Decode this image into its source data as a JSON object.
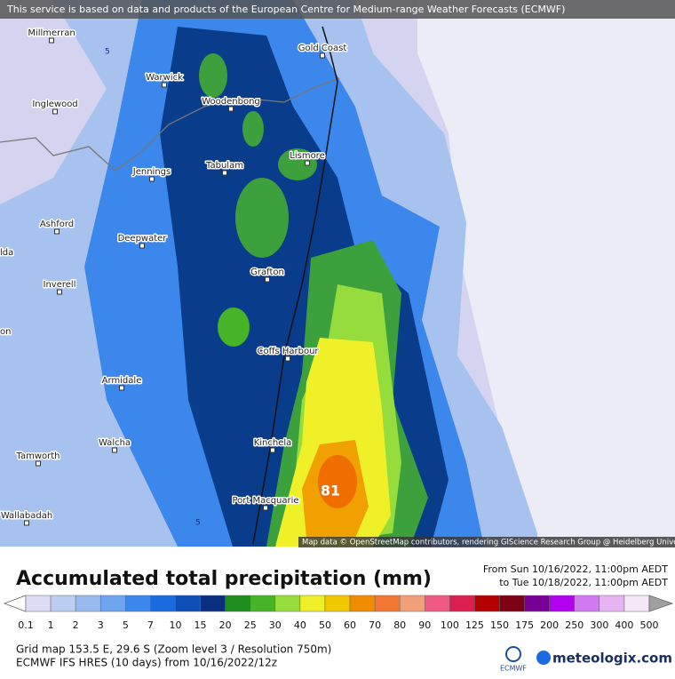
{
  "header": {
    "disclaimer": "This service is based on data and products of the European Centre for Medium-range Weather Forecasts (ECMWF)"
  },
  "map": {
    "places": [
      "Millmerran",
      "Gold Coast",
      "Warwick",
      "Inglewood",
      "Woodenbong",
      "Lismore",
      "Tabulam",
      "Jennings",
      "Ashford",
      "Deepwater",
      "lda",
      "Grafton",
      "Inverell",
      "on",
      "Coffs Harbour",
      "Armidale",
      "Kinchela",
      "Walcha",
      "Tamworth",
      "Port Macquarie",
      "Wallabadah"
    ],
    "max_label": "81",
    "contour_labels": [
      "5",
      "5"
    ],
    "attribution": "Map data © OpenStreetMap contributors, rendering GIScience Research Group @ Heidelberg University"
  },
  "legend": {
    "title": "Accumulated total precipitation (mm)",
    "period_from": "From Sun 10/16/2022, 11:00pm AEDT",
    "period_to": "to Tue 10/18/2022, 11:00pm AEDT",
    "below_color": "#ffffff",
    "above_color": "#a0a0a0",
    "steps": [
      {
        "label": "0.1",
        "color": "#dcdcf5"
      },
      {
        "label": "1",
        "color": "#bccdf2"
      },
      {
        "label": "2",
        "color": "#96b9ee"
      },
      {
        "label": "3",
        "color": "#6ea5ee"
      },
      {
        "label": "5",
        "color": "#3c87ec"
      },
      {
        "label": "7",
        "color": "#1a6ae0"
      },
      {
        "label": "10",
        "color": "#0d4fb4"
      },
      {
        "label": "15",
        "color": "#0a2f80"
      },
      {
        "label": "20",
        "color": "#1e8c1e"
      },
      {
        "label": "25",
        "color": "#46b428"
      },
      {
        "label": "30",
        "color": "#96dc3c"
      },
      {
        "label": "40",
        "color": "#f0f028"
      },
      {
        "label": "50",
        "color": "#f0c800"
      },
      {
        "label": "60",
        "color": "#f08c00"
      },
      {
        "label": "70",
        "color": "#f07832"
      },
      {
        "label": "80",
        "color": "#f0a078"
      },
      {
        "label": "90",
        "color": "#f05a82"
      },
      {
        "label": "100",
        "color": "#dc1e50"
      },
      {
        "label": "125",
        "color": "#b40000"
      },
      {
        "label": "150",
        "color": "#7d0014"
      },
      {
        "label": "175",
        "color": "#780096"
      },
      {
        "label": "200",
        "color": "#b400f0"
      },
      {
        "label": "250",
        "color": "#d278f0"
      },
      {
        "label": "300",
        "color": "#e6b4f0"
      },
      {
        "label": "400",
        "color": "#f5e6f8"
      },
      {
        "label": "500",
        "color": "#c8c8c8"
      }
    ]
  },
  "footer": {
    "grid": "Grid map 153.5 E, 29.6 S (Zoom level 3 / Resolution 750m)",
    "model": "ECMWF IFS HRES (10 days) from 10/16/2022/12z",
    "ecmwf": "ECMWF",
    "brand": "meteologix.com"
  }
}
